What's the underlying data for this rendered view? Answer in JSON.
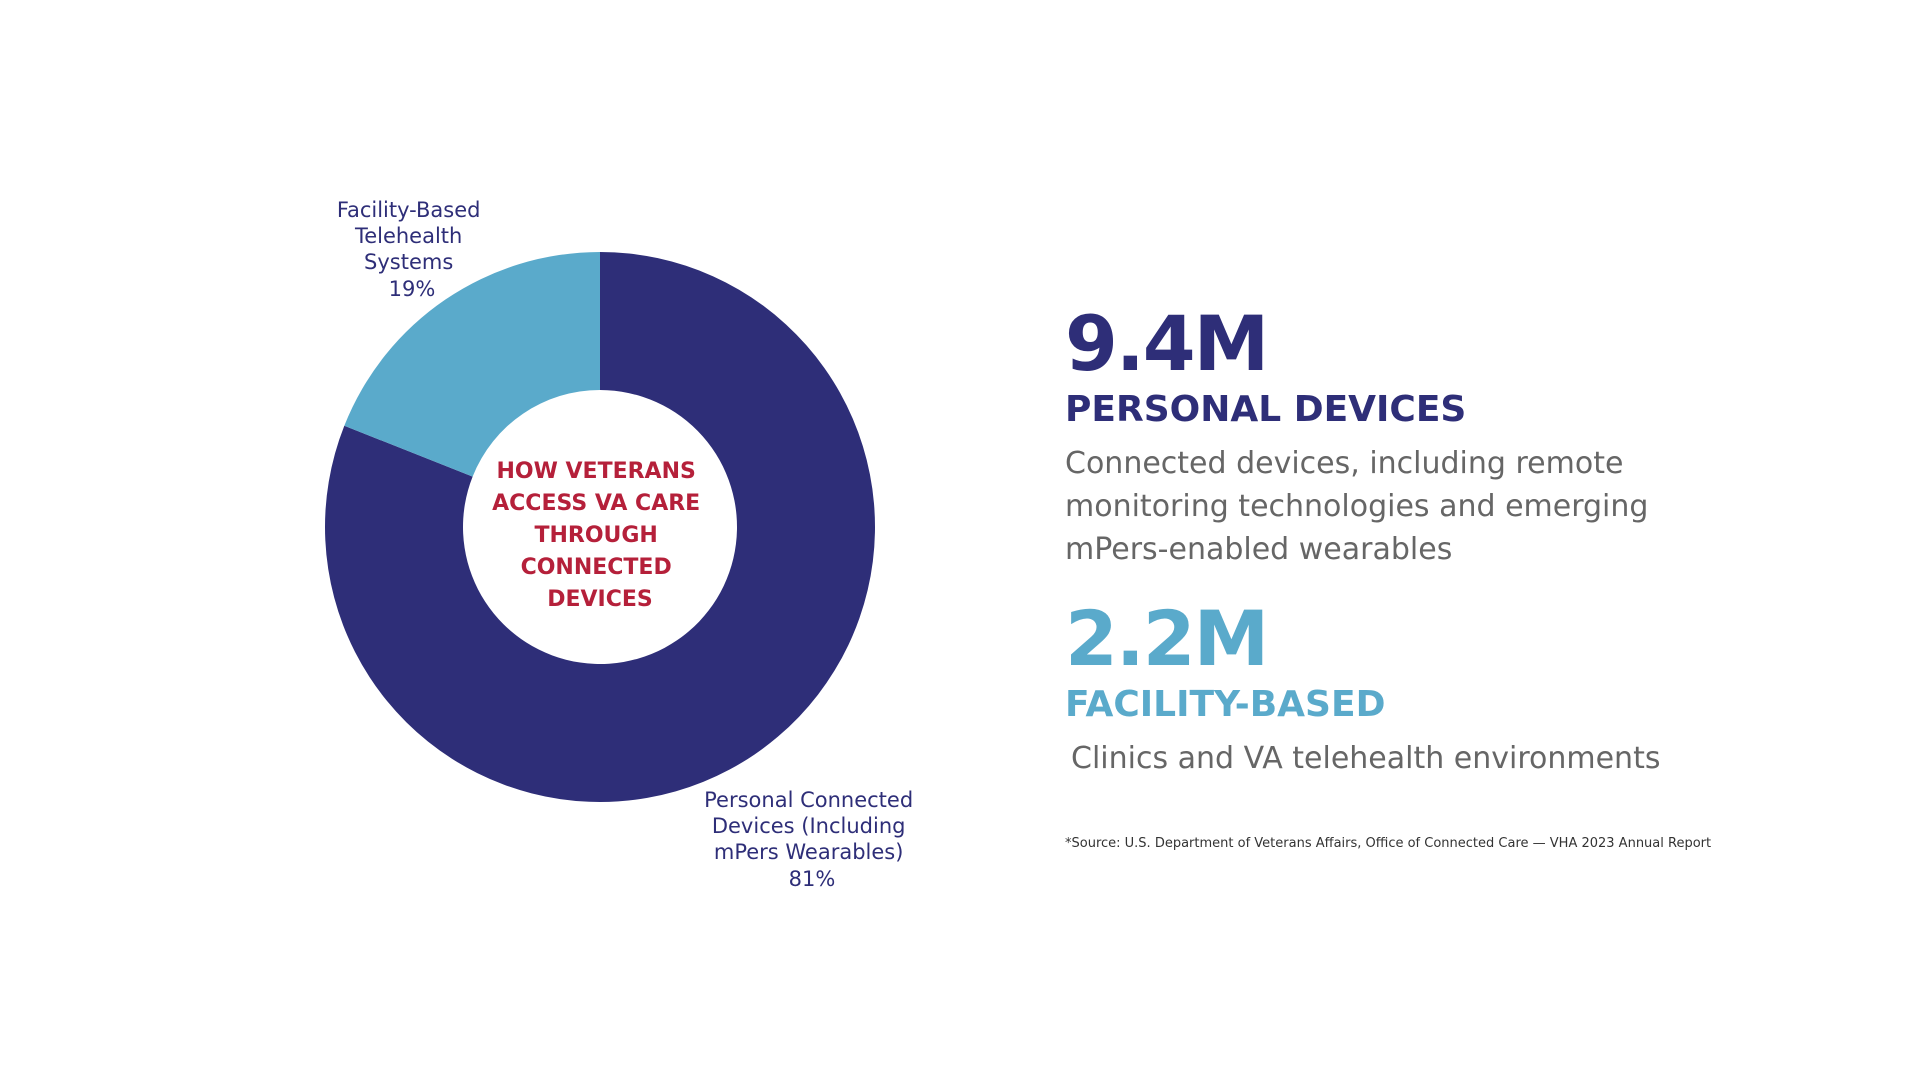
{
  "colors": {
    "personal": "#2e2e78",
    "facility": "#5aaacb",
    "center_text": "#b5203a",
    "desc_text": "#666666"
  },
  "chart_data": {
    "type": "pie",
    "variant": "donut",
    "title": "HOW VETERANS ACCESS VA CARE THROUGH CONNECTED DEVICES",
    "title_lines": [
      "HOW VETERANS",
      "ACCESS VA CARE",
      "THROUGH",
      "CONNECTED",
      "DEVICES"
    ],
    "slices": [
      {
        "name": "Personal Connected Devices (Including mPers Wearables)",
        "label_lines": [
          "Personal Connected",
          "Devices (Including",
          "mPers Wearables)"
        ],
        "value": 81,
        "value_label": "81%",
        "color": "#2e2e78"
      },
      {
        "name": "Facility-Based Telehealth Systems",
        "label_lines": [
          "Facility-Based",
          "Telehealth",
          "Systems"
        ],
        "value": 19,
        "value_label": "19%",
        "color": "#5aaacb"
      }
    ]
  },
  "stats": {
    "personal": {
      "value": "9.4M",
      "title": "PERSONAL DEVICES",
      "description": "Connected devices, including remote monitoring technologies and emerging mPers-enabled wearables"
    },
    "facility": {
      "value": "2.2M",
      "title": "FACILITY-BASED",
      "description": "Clinics and VA telehealth environments"
    },
    "source": "*Source: U.S. Department of Veterans Affairs, Office of Connected Care — VHA 2023 Annual Report"
  }
}
